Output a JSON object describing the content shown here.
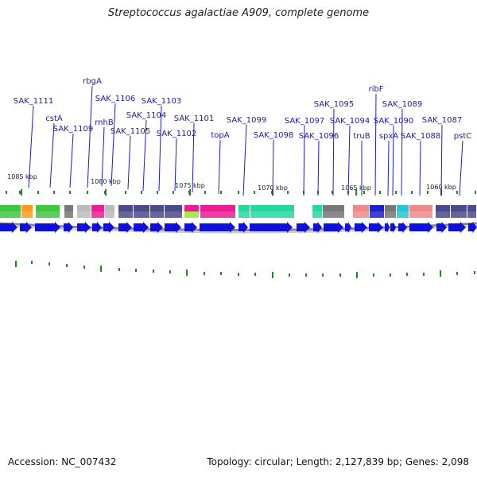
{
  "title": "Streptococcus agalactiae A909, complete genome",
  "footer": {
    "accession": "Accession: NC_007432",
    "summary": "Topology: circular; Length: 2,127,839 bp; Genes: 2,098"
  },
  "kbp_ticks": [
    "1085 kbp",
    "1080 kbp",
    "1075 kbp",
    "1070 kbp",
    "1065 kbp",
    "1060 kbp"
  ],
  "gene_labels": [
    "SAK_1111",
    "cstA",
    "SAK_1109",
    "rbgA",
    "rnhB",
    "SAK_1106",
    "SAK_1105",
    "SAK_1104",
    "SAK_1103",
    "SAK_1102",
    "SAK_1101",
    "topA",
    "SAK_1099",
    "SAK_1098",
    "SAK_1097",
    "SAK_1096",
    "SAK_1095",
    "SAK_1094",
    "truB",
    "ribF",
    "spxA",
    "SAK_1090",
    "SAK_1089",
    "SAK_1088",
    "SAK_1087",
    "pstC"
  ],
  "colors": {
    "arrow": "#1010dd",
    "backbone": "#888888",
    "label_line": "#1c1ccc",
    "label_text": "#1a1aa8",
    "tick": "#1e8a1e",
    "green": "#3ec83e",
    "orange": "#ff9a1a",
    "gray": "#777777",
    "lightgray": "#bbbbbb",
    "magenta": "#ee1b96",
    "purple": "#4a4a8a",
    "lime": "#9ce23a",
    "teal": "#22d9a0",
    "salmon": "#f08888",
    "blue": "#1f1fcc",
    "cyan": "#22c8d8"
  }
}
